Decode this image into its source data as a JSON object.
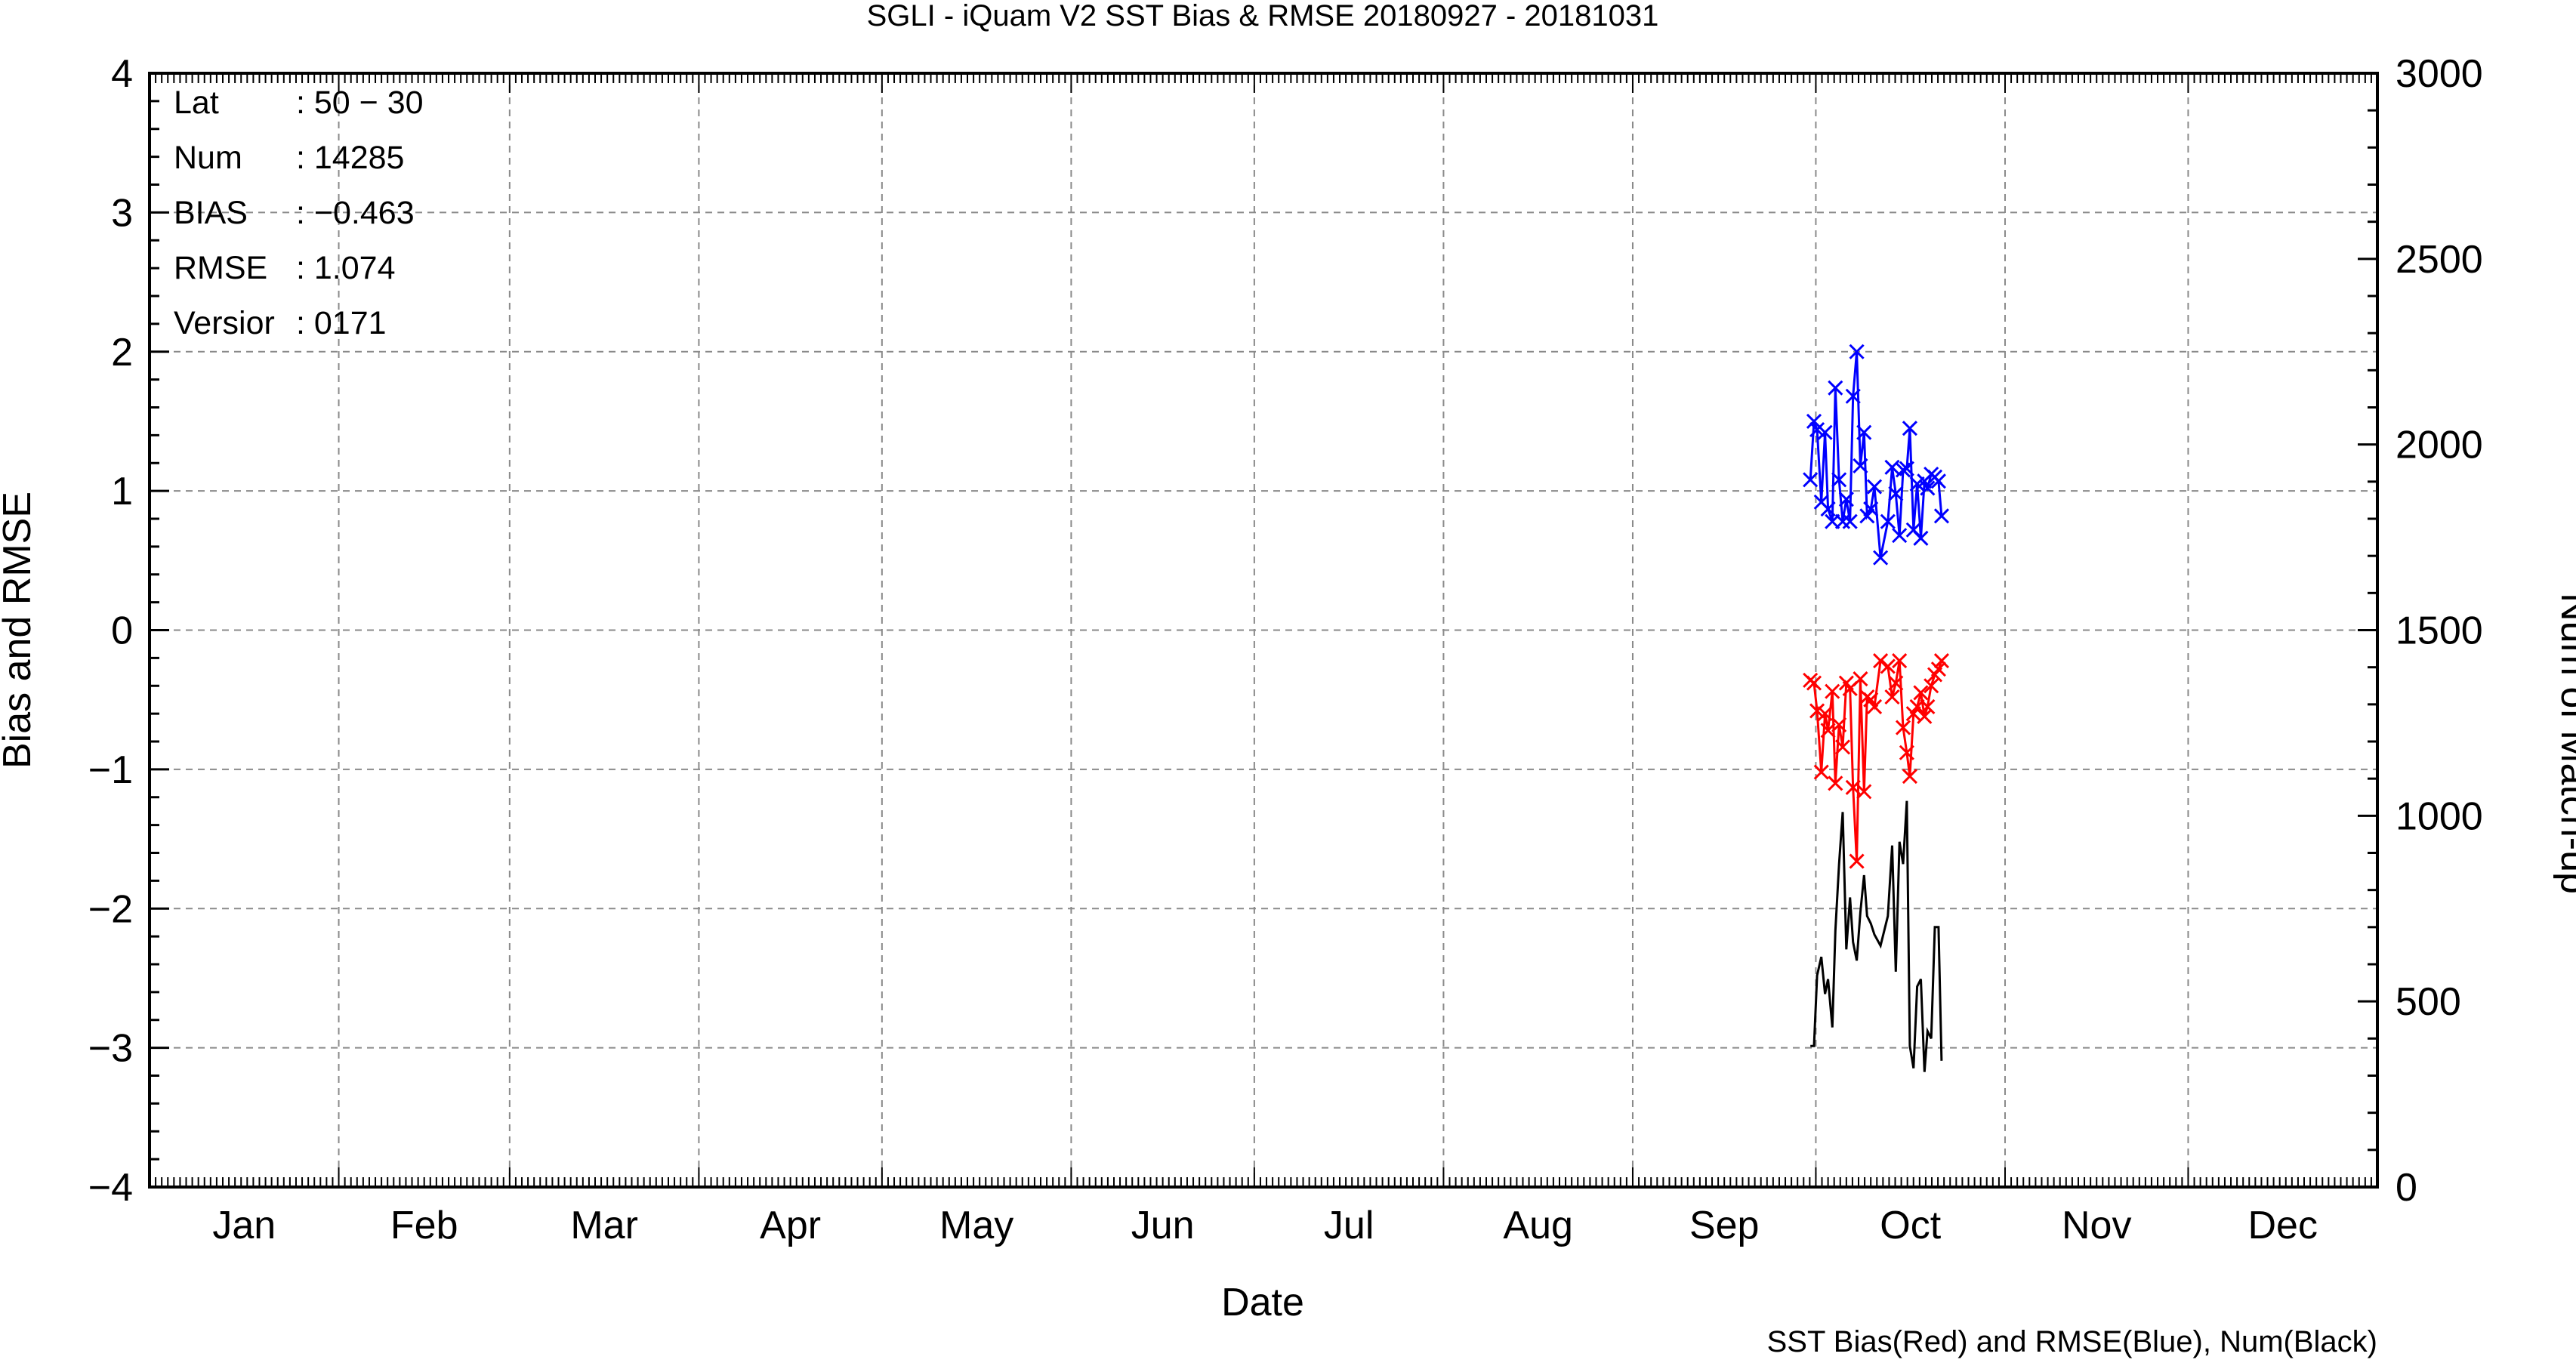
{
  "chart_data": {
    "type": "line",
    "title": "SGLI - iQuam V2 SST Bias & RMSE 20180927 - 20181031",
    "xlabel": "Date",
    "ylabel": "Bias and RMSE",
    "y2label": "Num of Match-up",
    "footnote": "SST Bias(Red) and RMSE(Blue), Num(Black)",
    "ylim": [
      -4,
      4
    ],
    "y2lim": [
      0,
      3000
    ],
    "yticks": [
      {
        "value": -4,
        "label": "−4"
      },
      {
        "value": -3,
        "label": "−3"
      },
      {
        "value": -2,
        "label": "−2"
      },
      {
        "value": -1,
        "label": "−1"
      },
      {
        "value": 0,
        "label": "0"
      },
      {
        "value": 1,
        "label": "1"
      },
      {
        "value": 2,
        "label": "2"
      },
      {
        "value": 3,
        "label": "3"
      },
      {
        "value": 4,
        "label": "4"
      }
    ],
    "y2ticks": [
      {
        "value": 0,
        "label": "0"
      },
      {
        "value": 500,
        "label": "500"
      },
      {
        "value": 1000,
        "label": "1000"
      },
      {
        "value": 1500,
        "label": "1500"
      },
      {
        "value": 2000,
        "label": "2000"
      },
      {
        "value": 2500,
        "label": "2500"
      },
      {
        "value": 3000,
        "label": "3000"
      }
    ],
    "x_range_days": [
      0,
      365
    ],
    "months": [
      {
        "label": "Jan",
        "start_day": 0
      },
      {
        "label": "Feb",
        "start_day": 31
      },
      {
        "label": "Mar",
        "start_day": 59
      },
      {
        "label": "Apr",
        "start_day": 90
      },
      {
        "label": "May",
        "start_day": 120
      },
      {
        "label": "Jun",
        "start_day": 151
      },
      {
        "label": "Jul",
        "start_day": 181
      },
      {
        "label": "Aug",
        "start_day": 212
      },
      {
        "label": "Sep",
        "start_day": 243
      },
      {
        "label": "Oct",
        "start_day": 273
      },
      {
        "label": "Nov",
        "start_day": 304
      },
      {
        "label": "Dec",
        "start_day": 334
      }
    ],
    "grid": true,
    "info_box": [
      {
        "key": "Lat",
        "value": ": 50 − 30"
      },
      {
        "key": "Num",
        "value": ": 14285"
      },
      {
        "key": "BIAS",
        "value": ": −0.463"
      },
      {
        "key": "RMSE",
        "value": ": 1.074"
      },
      {
        "key": "Versior",
        "value": ": 0171"
      }
    ],
    "series": [
      {
        "name": "RMSE",
        "color": "#0000ff",
        "marker": "x",
        "axis": "left",
        "x": [
          272.1,
          272.7,
          273.2,
          273.9,
          274.5,
          275.0,
          275.7,
          276.2,
          276.8,
          277.4,
          278.0,
          278.6,
          279.1,
          279.7,
          280.3,
          280.9,
          281.4,
          282.0,
          282.6,
          283.6,
          284.8,
          285.5,
          286.1,
          286.7,
          287.3,
          287.9,
          288.4,
          289.0,
          289.6,
          290.2,
          290.8,
          291.3,
          291.9,
          292.5,
          293.1,
          293.6
        ],
        "y": [
          1.08,
          1.5,
          1.44,
          0.92,
          1.42,
          0.87,
          0.78,
          1.74,
          1.08,
          0.78,
          0.94,
          0.78,
          1.68,
          2.0,
          1.18,
          1.42,
          0.82,
          0.87,
          1.03,
          0.52,
          0.78,
          1.17,
          0.98,
          0.68,
          1.15,
          1.16,
          1.45,
          0.72,
          1.05,
          0.66,
          1.07,
          1.02,
          1.12,
          1.1,
          1.07,
          0.82
        ]
      },
      {
        "name": "Bias",
        "color": "#ff0000",
        "marker": "x",
        "axis": "left",
        "x": [
          272.1,
          272.7,
          273.2,
          273.9,
          274.5,
          275.0,
          275.7,
          276.2,
          276.8,
          277.4,
          278.0,
          278.6,
          279.1,
          279.7,
          280.3,
          280.9,
          281.4,
          282.0,
          282.6,
          283.6,
          284.8,
          285.5,
          286.1,
          286.7,
          287.3,
          287.9,
          288.4,
          289.0,
          289.6,
          290.2,
          290.8,
          291.3,
          291.9,
          292.5,
          293.1,
          293.6
        ],
        "y": [
          -0.36,
          -0.38,
          -0.58,
          -1.02,
          -0.6,
          -0.72,
          -0.44,
          -1.1,
          -0.68,
          -0.84,
          -0.38,
          -0.42,
          -1.13,
          -1.66,
          -0.35,
          -1.16,
          -0.48,
          -0.5,
          -0.55,
          -0.22,
          -0.26,
          -0.48,
          -0.38,
          -0.22,
          -0.7,
          -0.88,
          -1.05,
          -0.6,
          -0.55,
          -0.45,
          -0.62,
          -0.55,
          -0.4,
          -0.32,
          -0.28,
          -0.22
        ]
      },
      {
        "name": "Num",
        "color": "#000000",
        "marker": "none",
        "axis": "right",
        "x": [
          272.1,
          272.7,
          273.2,
          273.9,
          274.5,
          275.0,
          275.7,
          276.2,
          276.8,
          277.4,
          278.0,
          278.6,
          279.1,
          279.7,
          280.3,
          280.9,
          281.4,
          282.0,
          282.6,
          283.6,
          284.8,
          285.5,
          286.1,
          286.7,
          287.3,
          287.9,
          288.4,
          289.0,
          289.6,
          290.2,
          290.8,
          291.3,
          291.9,
          292.5,
          293.1,
          293.6
        ],
        "y": [
          380,
          380,
          570,
          620,
          520,
          560,
          430,
          690,
          870,
          1010,
          640,
          780,
          660,
          610,
          740,
          840,
          730,
          710,
          680,
          650,
          730,
          920,
          580,
          930,
          870,
          1040,
          380,
          320,
          540,
          560,
          310,
          420,
          400,
          700,
          700,
          340
        ]
      }
    ]
  }
}
